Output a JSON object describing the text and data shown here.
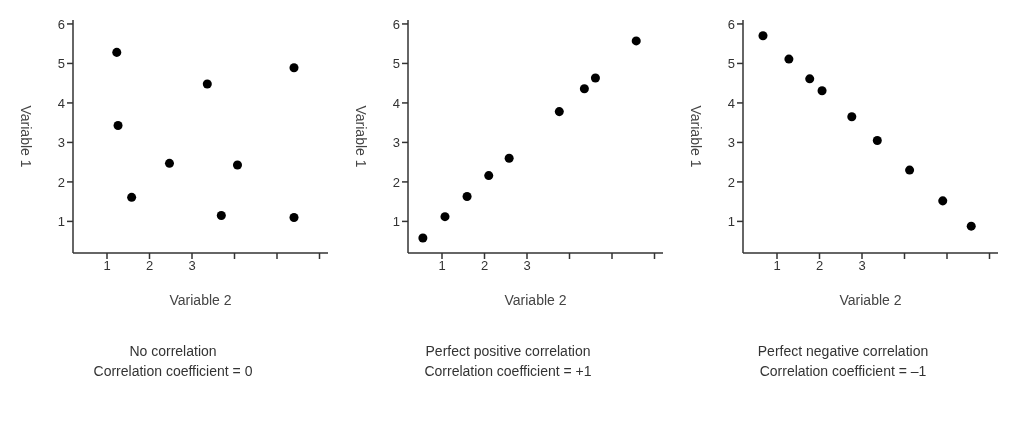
{
  "chart_data": [
    {
      "type": "scatter",
      "title": "No correlation",
      "subtitle": "Correlation coefficient = 0",
      "xlabel": "Variable 2",
      "ylabel": "Variable 1",
      "marker": "circle",
      "grid": false,
      "xlim": [
        0.2,
        6.2
      ],
      "ylim": [
        0.2,
        6.1
      ],
      "xticks": [
        1,
        2,
        3,
        {
          "value": 4,
          "label": null
        },
        {
          "value": 5,
          "label": null
        },
        {
          "value": 6,
          "label": null
        }
      ],
      "yticks": [
        1,
        2,
        3,
        4,
        5,
        6
      ],
      "series": [
        {
          "color": "#000000",
          "x": [
            1.23,
            1.26,
            1.58,
            2.47,
            3.36,
            3.69,
            4.07,
            5.4,
            5.4
          ],
          "values": [
            5.28,
            3.43,
            1.61,
            2.47,
            4.48,
            1.15,
            2.43,
            4.89,
            1.1
          ]
        }
      ]
    },
    {
      "type": "scatter",
      "title": "Perfect positive correlation",
      "subtitle": "Correlation coefficient = +1",
      "xlabel": "Variable 2",
      "ylabel": "Variable 1",
      "marker": "circle",
      "grid": false,
      "xlim": [
        0.2,
        6.2
      ],
      "ylim": [
        0.2,
        6.1
      ],
      "xticks": [
        1,
        2,
        3,
        {
          "value": 4,
          "label": null
        },
        {
          "value": 5,
          "label": null
        },
        {
          "value": 6,
          "label": null
        }
      ],
      "yticks": [
        1,
        2,
        3,
        4,
        5,
        6
      ],
      "series": [
        {
          "color": "#000000",
          "x": [
            0.55,
            1.07,
            1.59,
            2.1,
            2.58,
            3.76,
            4.35,
            4.61,
            5.57
          ],
          "values": [
            0.58,
            1.12,
            1.63,
            2.16,
            2.6,
            3.78,
            4.36,
            4.63,
            5.57
          ]
        }
      ]
    },
    {
      "type": "scatter",
      "title": "Perfect negative correlation",
      "subtitle": "Correlation coefficient = –1",
      "xlabel": "Variable 2",
      "ylabel": "Variable 1",
      "marker": "circle",
      "grid": false,
      "xlim": [
        0.2,
        6.2
      ],
      "ylim": [
        0.2,
        6.1
      ],
      "xticks": [
        1,
        2,
        3,
        {
          "value": 4,
          "label": null
        },
        {
          "value": 5,
          "label": null
        },
        {
          "value": 6,
          "label": null
        }
      ],
      "yticks": [
        1,
        2,
        3,
        4,
        5,
        6
      ],
      "series": [
        {
          "color": "#000000",
          "x": [
            0.67,
            1.28,
            1.77,
            2.06,
            2.76,
            3.36,
            4.12,
            4.9,
            5.57
          ],
          "values": [
            5.7,
            5.11,
            4.61,
            4.31,
            3.65,
            3.05,
            2.3,
            1.52,
            0.88
          ]
        }
      ]
    }
  ]
}
